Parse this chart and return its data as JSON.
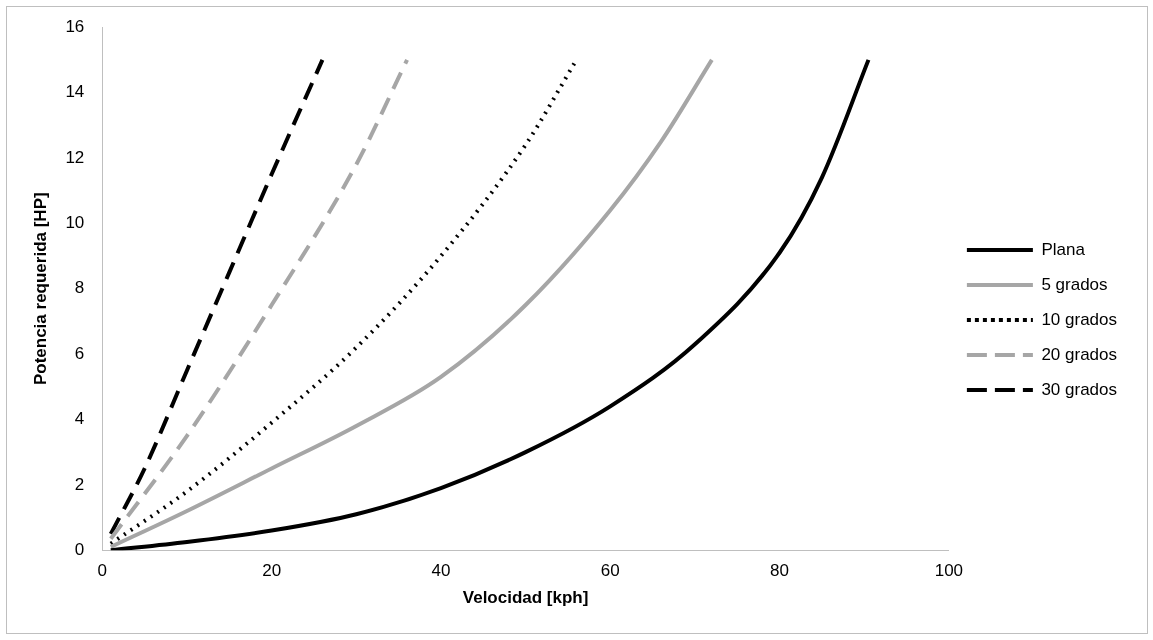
{
  "chart_data": {
    "type": "line",
    "xlabel": "Velocidad [kph]",
    "ylabel": "Potencia requerida [HP]",
    "xlim": [
      0,
      100
    ],
    "xticks": [
      0,
      20,
      40,
      60,
      80,
      100
    ],
    "ylim": [
      0,
      16
    ],
    "yticks": [
      0,
      2,
      4,
      6,
      8,
      10,
      12,
      14,
      16
    ],
    "grid": false,
    "legend": "right",
    "marker": "none",
    "series": [
      {
        "name": "Plana",
        "color": "#000000",
        "line_style": "solid",
        "x": [
          1,
          10,
          20,
          30,
          40,
          50,
          60,
          70,
          80,
          85,
          90.5
        ],
        "values": [
          0,
          0.25,
          0.6,
          1.1,
          1.9,
          3.0,
          4.4,
          6.3,
          9.1,
          11.4,
          15
        ]
      },
      {
        "name": "5 grados",
        "color": "#a6a6a6",
        "line_style": "solid",
        "x": [
          1,
          10,
          20,
          30,
          40,
          50,
          60,
          66,
          72
        ],
        "values": [
          0.1,
          1.2,
          2.5,
          3.8,
          5.3,
          7.5,
          10.4,
          12.5,
          15
        ]
      },
      {
        "name": "10 grados",
        "color": "#000000",
        "line_style": "dotted",
        "x": [
          1,
          10,
          20,
          30,
          40,
          50,
          56
        ],
        "values": [
          0.2,
          1.8,
          3.9,
          6.2,
          9.0,
          12.4,
          15
        ]
      },
      {
        "name": "20 grados",
        "color": "#a6a6a6",
        "line_style": "dashed",
        "x": [
          1,
          10,
          20,
          30,
          36
        ],
        "values": [
          0.35,
          3.5,
          7.5,
          11.8,
          15
        ]
      },
      {
        "name": "30 grados",
        "color": "#000000",
        "line_style": "dashed",
        "x": [
          1,
          5,
          10,
          15,
          20,
          26
        ],
        "values": [
          0.5,
          2.5,
          5.5,
          8.5,
          11.5,
          15
        ]
      }
    ]
  }
}
